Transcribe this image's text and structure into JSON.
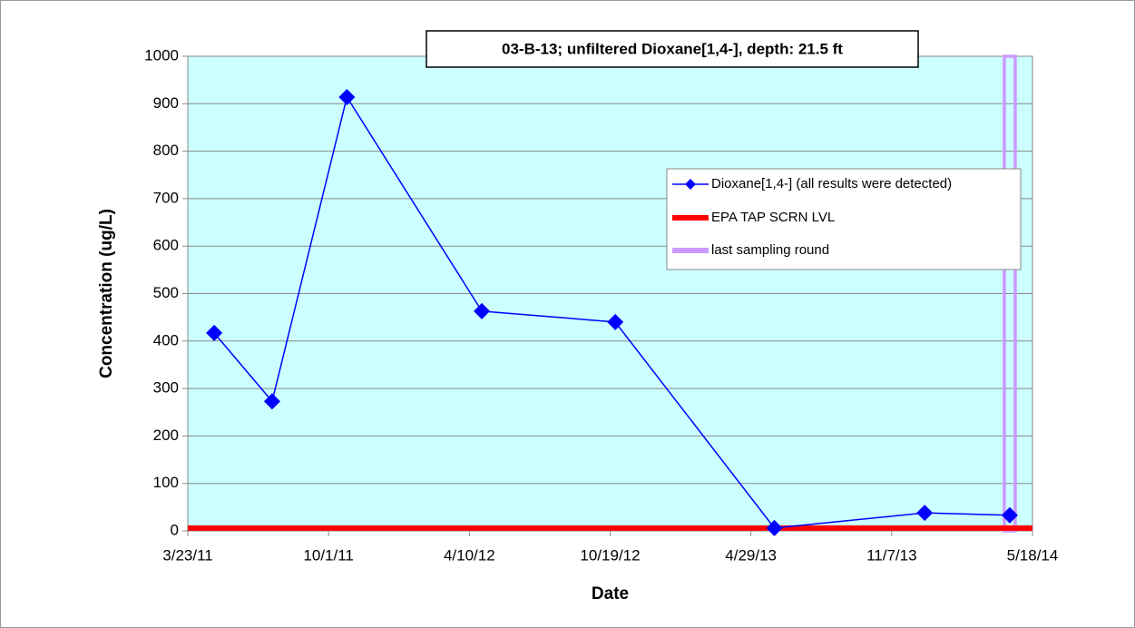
{
  "chart_data": {
    "type": "line",
    "title": "03-B-13; unfiltered Dioxane[1,4-], depth: 21.5 ft",
    "xlabel": "Date",
    "ylabel": "Concentration (ug/L)",
    "x": [
      "2011-04-28",
      "2011-07-16",
      "2011-10-26",
      "2012-04-27",
      "2012-10-26",
      "2013-05-31",
      "2013-12-22",
      "2014-04-17"
    ],
    "series": [
      {
        "name": "Dioxane[1,4-] (all results were detected)",
        "color": "#0000ff",
        "values": [
          417,
          273,
          914,
          463,
          440,
          6,
          38,
          33
        ]
      }
    ],
    "screening_level": {
      "name": "EPA TAP SCRN LVL",
      "color": "#ff0000",
      "value": 6
    },
    "last_sampling": {
      "name": "last sampling round",
      "color": "#cc99ff",
      "x": "2014-04-17"
    },
    "xlim": [
      "2011-03-23",
      "2014-05-18"
    ],
    "xticks": [
      {
        "value": "2011-03-23",
        "label": "3/23/11"
      },
      {
        "value": "2011-10-01",
        "label": "10/1/11"
      },
      {
        "value": "2012-04-10",
        "label": "4/10/12"
      },
      {
        "value": "2012-10-19",
        "label": "10/19/12"
      },
      {
        "value": "2013-04-29",
        "label": "4/29/13"
      },
      {
        "value": "2013-11-07",
        "label": "11/7/13"
      },
      {
        "value": "2014-05-18",
        "label": "5/18/14"
      }
    ],
    "ylim": [
      0,
      1000
    ],
    "yticks": [
      0,
      100,
      200,
      300,
      400,
      500,
      600,
      700,
      800,
      900,
      1000
    ],
    "grid": true,
    "background": "#ccffff"
  }
}
